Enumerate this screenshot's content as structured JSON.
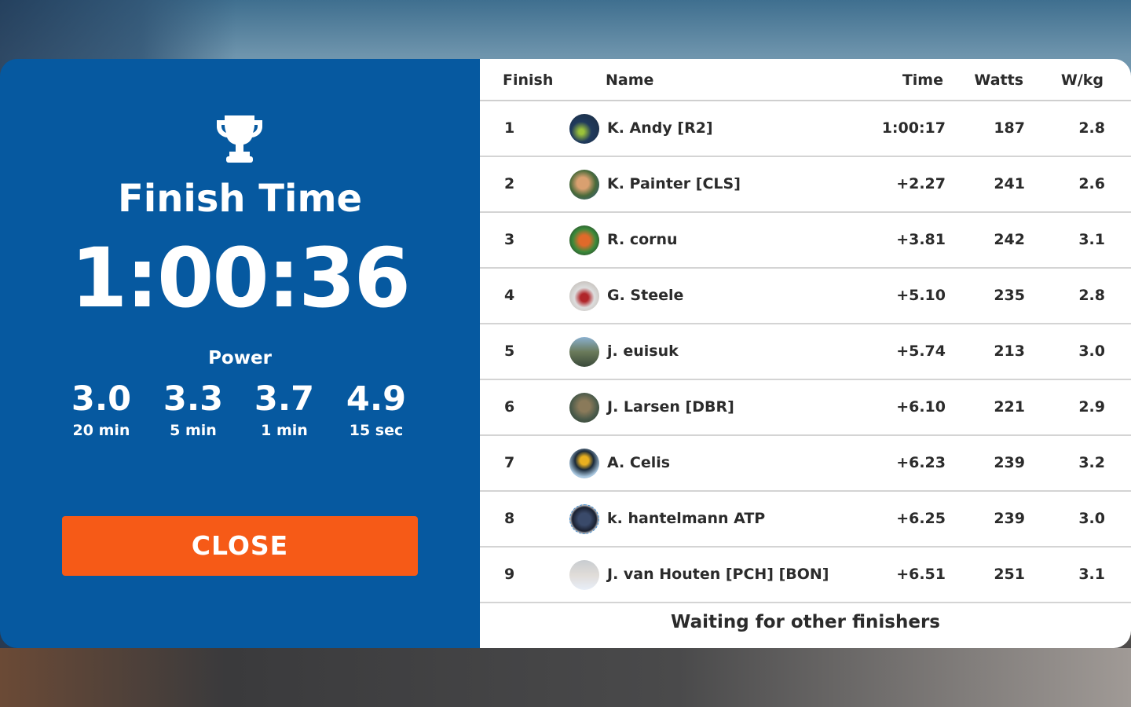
{
  "summary": {
    "title": "Finish Time",
    "time": "1:00:36",
    "power_label": "Power",
    "power": [
      {
        "value": "3.0",
        "label": "20 min"
      },
      {
        "value": "3.3",
        "label": "5 min"
      },
      {
        "value": "3.7",
        "label": "1 min"
      },
      {
        "value": "4.9",
        "label": "15 sec"
      }
    ],
    "close_label": "CLOSE",
    "icon": "trophy-icon"
  },
  "table": {
    "headers": {
      "finish": "Finish",
      "name": "Name",
      "time": "Time",
      "watts": "Watts",
      "wkg": "W/kg"
    },
    "rows": [
      {
        "finish": "1",
        "name": "K. Andy  [R2]",
        "time": "1:00:17",
        "watts": "187",
        "wkg": "2.8"
      },
      {
        "finish": "2",
        "name": "K. Painter [CLS]",
        "time": "+2.27",
        "watts": "241",
        "wkg": "2.6"
      },
      {
        "finish": "3",
        "name": "R. cornu",
        "time": "+3.81",
        "watts": "242",
        "wkg": "3.1"
      },
      {
        "finish": "4",
        "name": "G. Steele",
        "time": "+5.10",
        "watts": "235",
        "wkg": "2.8"
      },
      {
        "finish": "5",
        "name": "j. euisuk",
        "time": "+5.74",
        "watts": "213",
        "wkg": "3.0"
      },
      {
        "finish": "6",
        "name": "J. Larsen [DBR]",
        "time": "+6.10",
        "watts": "221",
        "wkg": "2.9"
      },
      {
        "finish": "7",
        "name": "A. Celis",
        "time": "+6.23",
        "watts": "239",
        "wkg": "3.2"
      },
      {
        "finish": "8",
        "name": "k. hantelmann  ATP",
        "time": "+6.25",
        "watts": "239",
        "wkg": "3.0"
      },
      {
        "finish": "9",
        "name": "J. van Houten [PCH] [BON]",
        "time": "+6.51",
        "watts": "251",
        "wkg": "3.1"
      }
    ],
    "footer": "Waiting for other finishers"
  },
  "colors": {
    "panel_blue": "#0659a0",
    "close_orange": "#f65a17",
    "text_dark": "#2b2b2b"
  }
}
